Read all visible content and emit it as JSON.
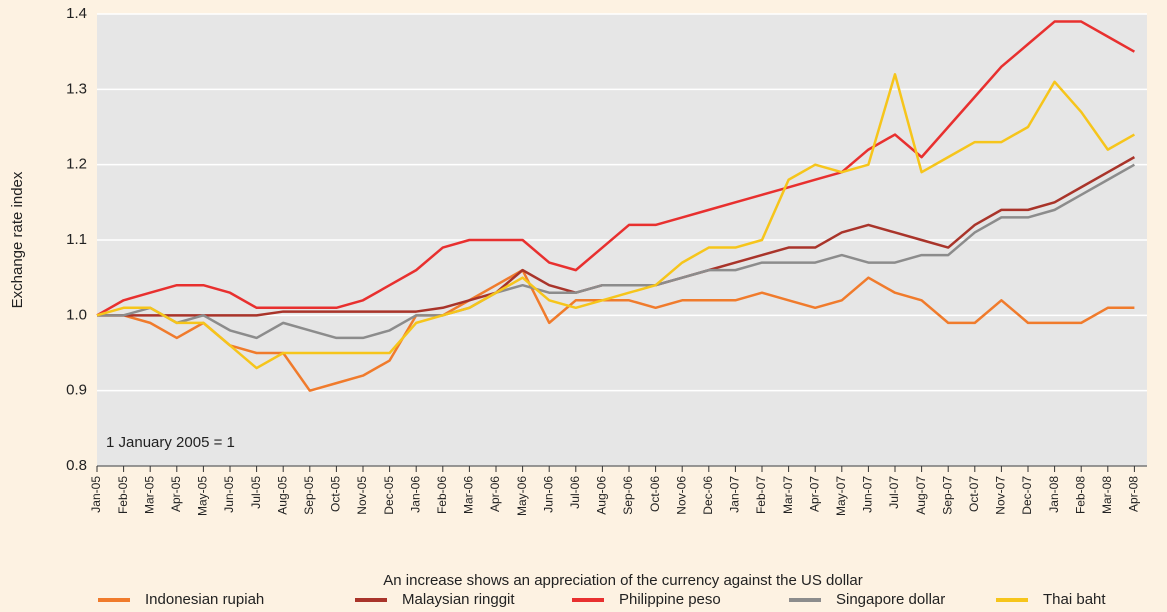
{
  "chart_data": {
    "type": "line",
    "y_label": "Exchange rate index",
    "annotation": "1 January 2005 = 1",
    "x_label": "An increase shows an appreciation of the currency against the US dollar",
    "categories": [
      "Jan-05",
      "Feb-05",
      "Mar-05",
      "Apr-05",
      "May-05",
      "Jun-05",
      "Jul-05",
      "Aug-05",
      "Sep-05",
      "Oct-05",
      "Nov-05",
      "Dec-05",
      "Jan-06",
      "Feb-06",
      "Mar-06",
      "Apr-06",
      "May-06",
      "Jun-06",
      "Jul-06",
      "Aug-06",
      "Sep-06",
      "Oct-06",
      "Nov-06",
      "Dec-06",
      "Jan-07",
      "Feb-07",
      "Mar-07",
      "Apr-07",
      "May-07",
      "Jun-07",
      "Jul-07",
      "Aug-07",
      "Sep-07",
      "Oct-07",
      "Nov-07",
      "Dec-07",
      "Jan-08",
      "Feb-08",
      "Mar-08",
      "Apr-08"
    ],
    "series": [
      {
        "name": "Indonesian rupiah",
        "color": "#f07b2c",
        "values": [
          1.0,
          1.0,
          0.99,
          0.97,
          0.99,
          0.96,
          0.95,
          0.95,
          0.9,
          0.91,
          0.92,
          0.94,
          1.0,
          1.0,
          1.02,
          1.04,
          1.06,
          0.99,
          1.02,
          1.02,
          1.02,
          1.01,
          1.02,
          1.02,
          1.02,
          1.03,
          1.02,
          1.01,
          1.02,
          1.05,
          1.03,
          1.02,
          0.99,
          0.99,
          1.02,
          0.99,
          0.99,
          0.99,
          1.01,
          1.01
        ]
      },
      {
        "name": "Malaysian ringgit",
        "color": "#a9342a",
        "values": [
          1.0,
          1.0,
          1.0,
          1.0,
          1.0,
          1.0,
          1.0,
          1.005,
          1.005,
          1.005,
          1.005,
          1.005,
          1.005,
          1.01,
          1.02,
          1.03,
          1.06,
          1.04,
          1.03,
          1.04,
          1.04,
          1.04,
          1.05,
          1.06,
          1.07,
          1.08,
          1.09,
          1.09,
          1.11,
          1.12,
          1.11,
          1.1,
          1.09,
          1.12,
          1.14,
          1.14,
          1.15,
          1.17,
          1.19,
          1.21
        ]
      },
      {
        "name": "Philippine peso",
        "color": "#e8302f",
        "values": [
          1.0,
          1.02,
          1.03,
          1.04,
          1.04,
          1.03,
          1.01,
          1.01,
          1.01,
          1.01,
          1.02,
          1.04,
          1.06,
          1.09,
          1.1,
          1.1,
          1.1,
          1.07,
          1.06,
          1.09,
          1.12,
          1.12,
          1.13,
          1.14,
          1.15,
          1.16,
          1.17,
          1.18,
          1.19,
          1.22,
          1.24,
          1.21,
          1.25,
          1.29,
          1.33,
          1.36,
          1.39,
          1.39,
          1.37,
          1.35
        ]
      },
      {
        "name": "Singapore dollar",
        "color": "#8c8c8c",
        "values": [
          1.0,
          1.0,
          1.01,
          0.99,
          1.0,
          0.98,
          0.97,
          0.99,
          0.98,
          0.97,
          0.97,
          0.98,
          1.0,
          1.0,
          1.01,
          1.03,
          1.04,
          1.03,
          1.03,
          1.04,
          1.04,
          1.04,
          1.05,
          1.06,
          1.06,
          1.07,
          1.07,
          1.07,
          1.08,
          1.07,
          1.07,
          1.08,
          1.08,
          1.11,
          1.13,
          1.13,
          1.14,
          1.16,
          1.18,
          1.2
        ]
      },
      {
        "name": "Thai baht",
        "color": "#f6c51b",
        "values": [
          1.0,
          1.01,
          1.01,
          0.99,
          0.99,
          0.96,
          0.93,
          0.95,
          0.95,
          0.95,
          0.95,
          0.95,
          0.99,
          1.0,
          1.01,
          1.03,
          1.05,
          1.02,
          1.01,
          1.02,
          1.03,
          1.04,
          1.07,
          1.09,
          1.09,
          1.1,
          1.18,
          1.2,
          1.19,
          1.2,
          1.32,
          1.19,
          1.21,
          1.23,
          1.23,
          1.25,
          1.31,
          1.27,
          1.22,
          1.24
        ]
      }
    ],
    "ylim": [
      0.8,
      1.4
    ],
    "yticks": [
      0.8,
      0.9,
      {
        "value": 1,
        "label": "1.0"
      },
      1.1,
      1.2,
      1.3,
      1.4
    ],
    "grid": true
  }
}
